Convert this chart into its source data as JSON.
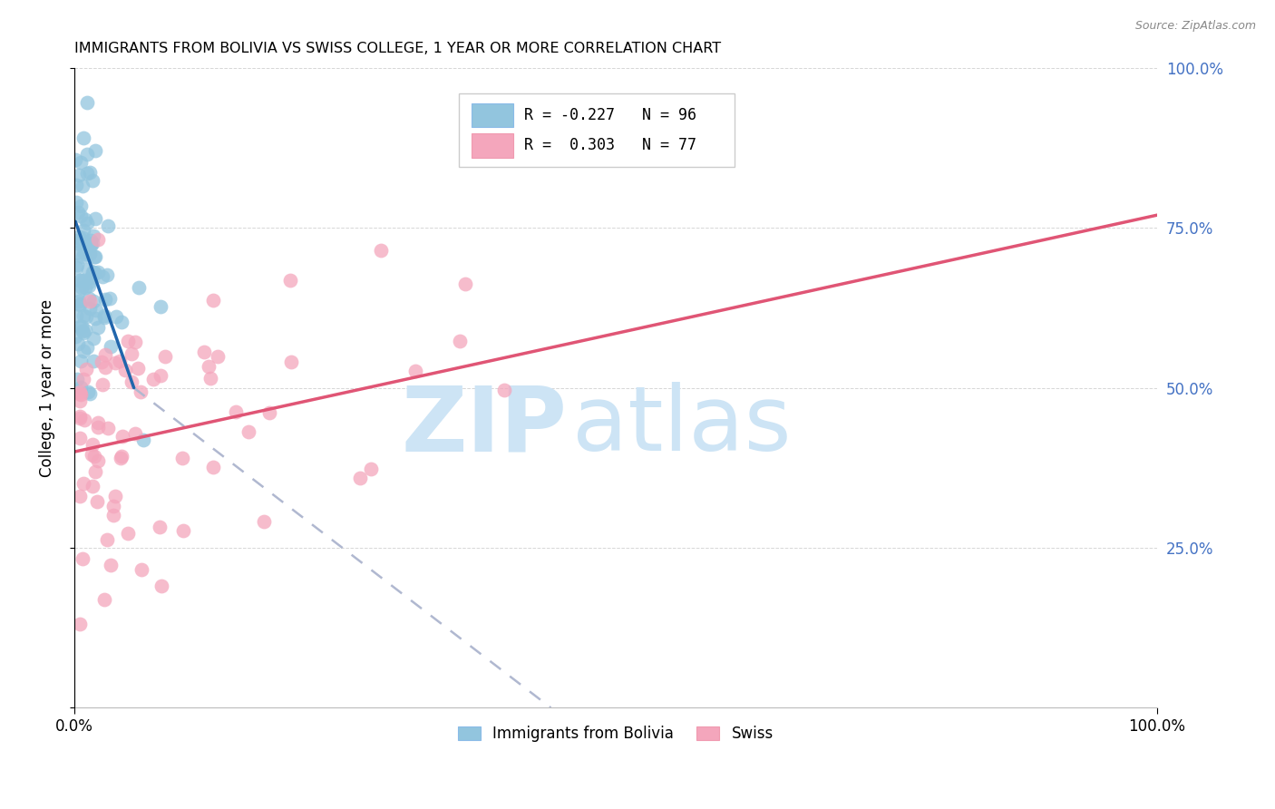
{
  "title": "IMMIGRANTS FROM BOLIVIA VS SWISS COLLEGE, 1 YEAR OR MORE CORRELATION CHART",
  "source": "Source: ZipAtlas.com",
  "ylabel": "College, 1 year or more",
  "xlim": [
    0.0,
    1.0
  ],
  "ylim": [
    0.0,
    1.0
  ],
  "y_ticks": [
    0.0,
    0.25,
    0.5,
    0.75,
    1.0
  ],
  "bolivia_color": "#92c5de",
  "swiss_color": "#f4a6bc",
  "bolivia_line_color": "#2166ac",
  "swiss_line_color": "#e05575",
  "dashed_line_color": "#b0b8d0",
  "legend_bolivia_label": "Immigrants from Bolivia",
  "legend_swiss_label": "Swiss",
  "R_bolivia": -0.227,
  "N_bolivia": 96,
  "R_swiss": 0.303,
  "N_swiss": 77,
  "watermark_color": "#cde4f5",
  "right_axis_color": "#4472c4",
  "right_y_labels": [
    "100.0%",
    "75.0%",
    "50.0%",
    "25.0%"
  ],
  "right_y_ticks": [
    1.0,
    0.75,
    0.5,
    0.25
  ],
  "bolivia_line_x_start": 0.001,
  "bolivia_line_x_end": 0.055,
  "bolivia_line_y_start": 0.76,
  "bolivia_line_y_end": 0.5,
  "dashed_line_x_start": 0.055,
  "dashed_line_x_end": 0.44,
  "dashed_line_y_start": 0.5,
  "dashed_line_y_end": 0.0,
  "swiss_line_x_start": 0.0,
  "swiss_line_x_end": 1.0,
  "swiss_line_y_start": 0.4,
  "swiss_line_y_end": 0.77
}
